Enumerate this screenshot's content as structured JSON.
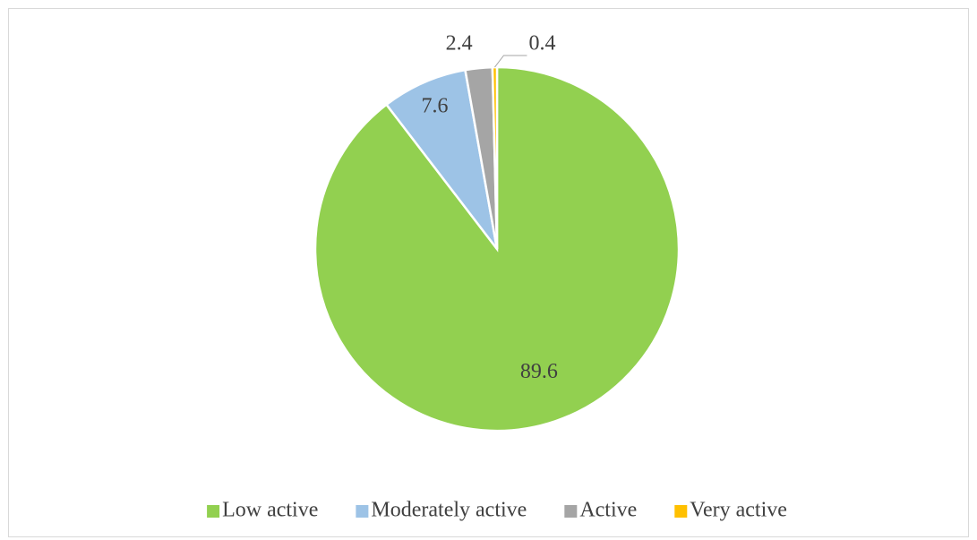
{
  "chart_data": {
    "type": "pie",
    "categories": [
      "Low active",
      "Moderately active",
      "Active",
      "Very active"
    ],
    "values": [
      89.6,
      7.6,
      2.4,
      0.4
    ],
    "colors": [
      "#92d050",
      "#9dc3e6",
      "#a5a5a5",
      "#ffc000"
    ],
    "legend": "bottom"
  }
}
